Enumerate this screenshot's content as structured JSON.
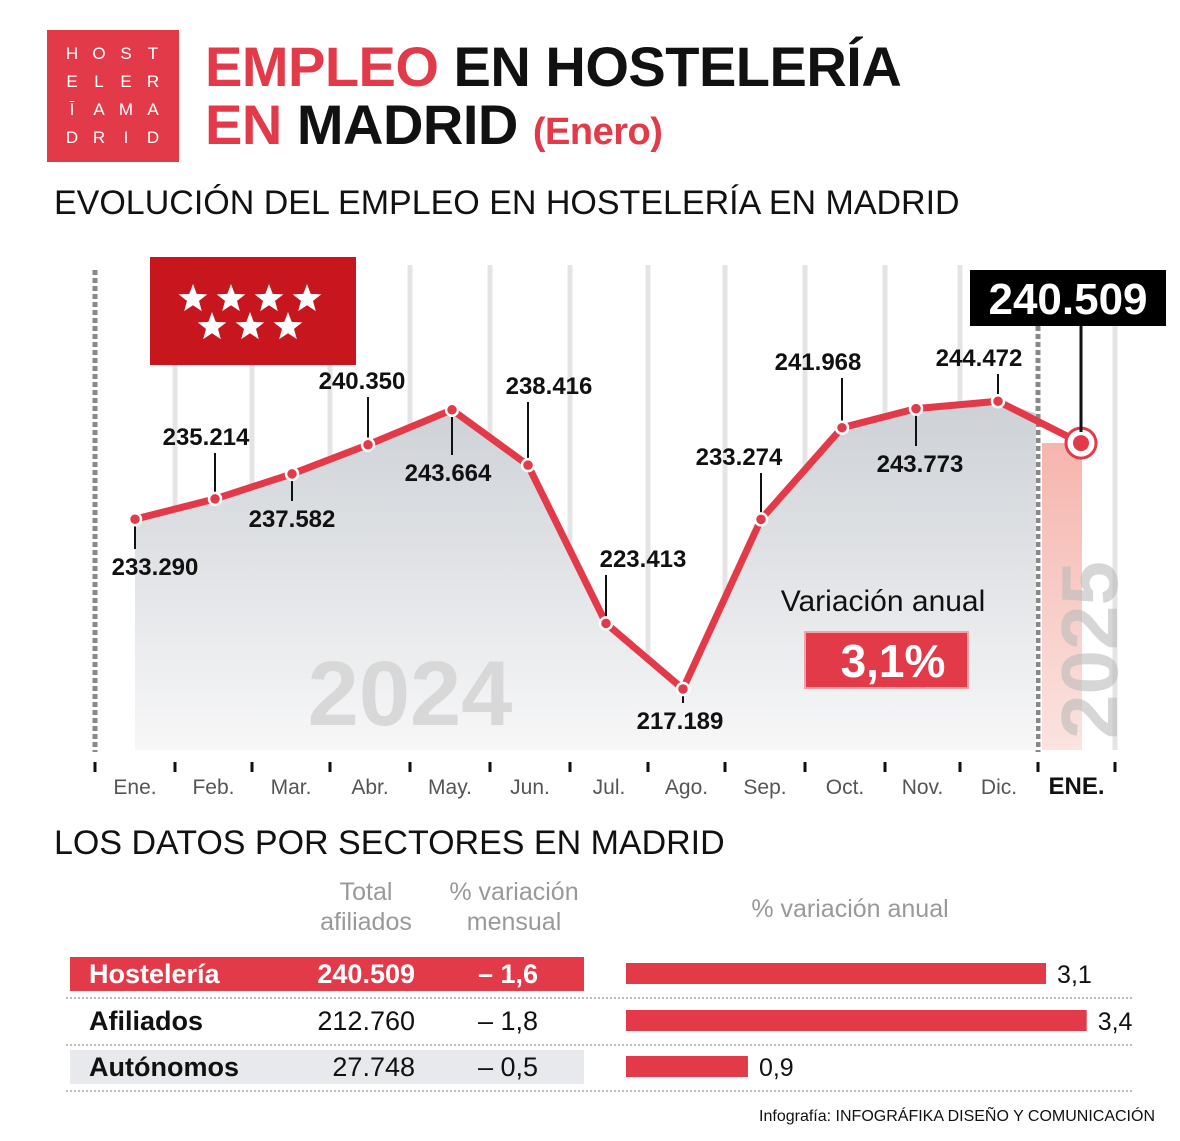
{
  "logo": {
    "letters": [
      "H",
      "O",
      "S",
      "T",
      "E",
      "L",
      "E",
      "R",
      "Ī",
      "A",
      "M",
      "A",
      "D",
      "R",
      "I",
      "D"
    ]
  },
  "title": {
    "part1": "EMPLEO",
    "part2": "EN HOSTELERÍA",
    "part3": "EN",
    "part4": "MADRID",
    "part5": "(Enero)"
  },
  "section1": "EVOLUCIÓN DEL EMPLEO EN HOSTELERÍA EN MADRID",
  "section2": "LOS DATOS POR SECTORES EN MADRID",
  "colors": {
    "accent": "#e23a48",
    "flag": "#c8161e",
    "band": "#f5b5ad"
  },
  "chart_data": [
    {
      "type": "line",
      "categories": [
        "Ene.",
        "Feb.",
        "Mar.",
        "Abr.",
        "May.",
        "Jun.",
        "Jul.",
        "Ago.",
        "Sep.",
        "Oct.",
        "Nov.",
        "Dic.",
        "ENE."
      ],
      "values": [
        233.29,
        235.214,
        237.582,
        240.35,
        243.664,
        238.416,
        223.413,
        217.189,
        233.274,
        241.968,
        243.773,
        244.472,
        240.509
      ],
      "labels": [
        "233.290",
        "235.214",
        "237.582",
        "240.350",
        "243.664",
        "238.416",
        "223.413",
        "217.189",
        "233.274",
        "241.968",
        "243.773",
        "244.472",
        "240.509"
      ],
      "year_labels": [
        "2024",
        "2025"
      ],
      "highlight": "240.509",
      "annotation": {
        "label": "Variación anual",
        "value": "3,1%"
      },
      "ylim": [
        211.4,
        250
      ],
      "grid": "vertical"
    },
    {
      "type": "bar",
      "title": "% variación anual",
      "categories": [
        "Hostelería",
        "Afiliados",
        "Autónomos"
      ],
      "values": [
        3.1,
        3.4,
        0.9
      ],
      "labels": [
        "3,1",
        "3,4",
        "0,9"
      ]
    }
  ],
  "table": {
    "headers": {
      "total": "Total afiliados",
      "mensual": "% variación mensual"
    },
    "rows": [
      {
        "name": "Hostelería",
        "total": "240.509",
        "mensual": "– 1,6"
      },
      {
        "name": "Afiliados",
        "total": "212.760",
        "mensual": "– 1,8"
      },
      {
        "name": "Autónomos",
        "total": "27.748",
        "mensual": "– 0,5"
      }
    ]
  },
  "credit": {
    "prefix": "Infografía: ",
    "name": "INFOGRÁFIKA DISEÑO Y COMUNICACIÓN"
  }
}
